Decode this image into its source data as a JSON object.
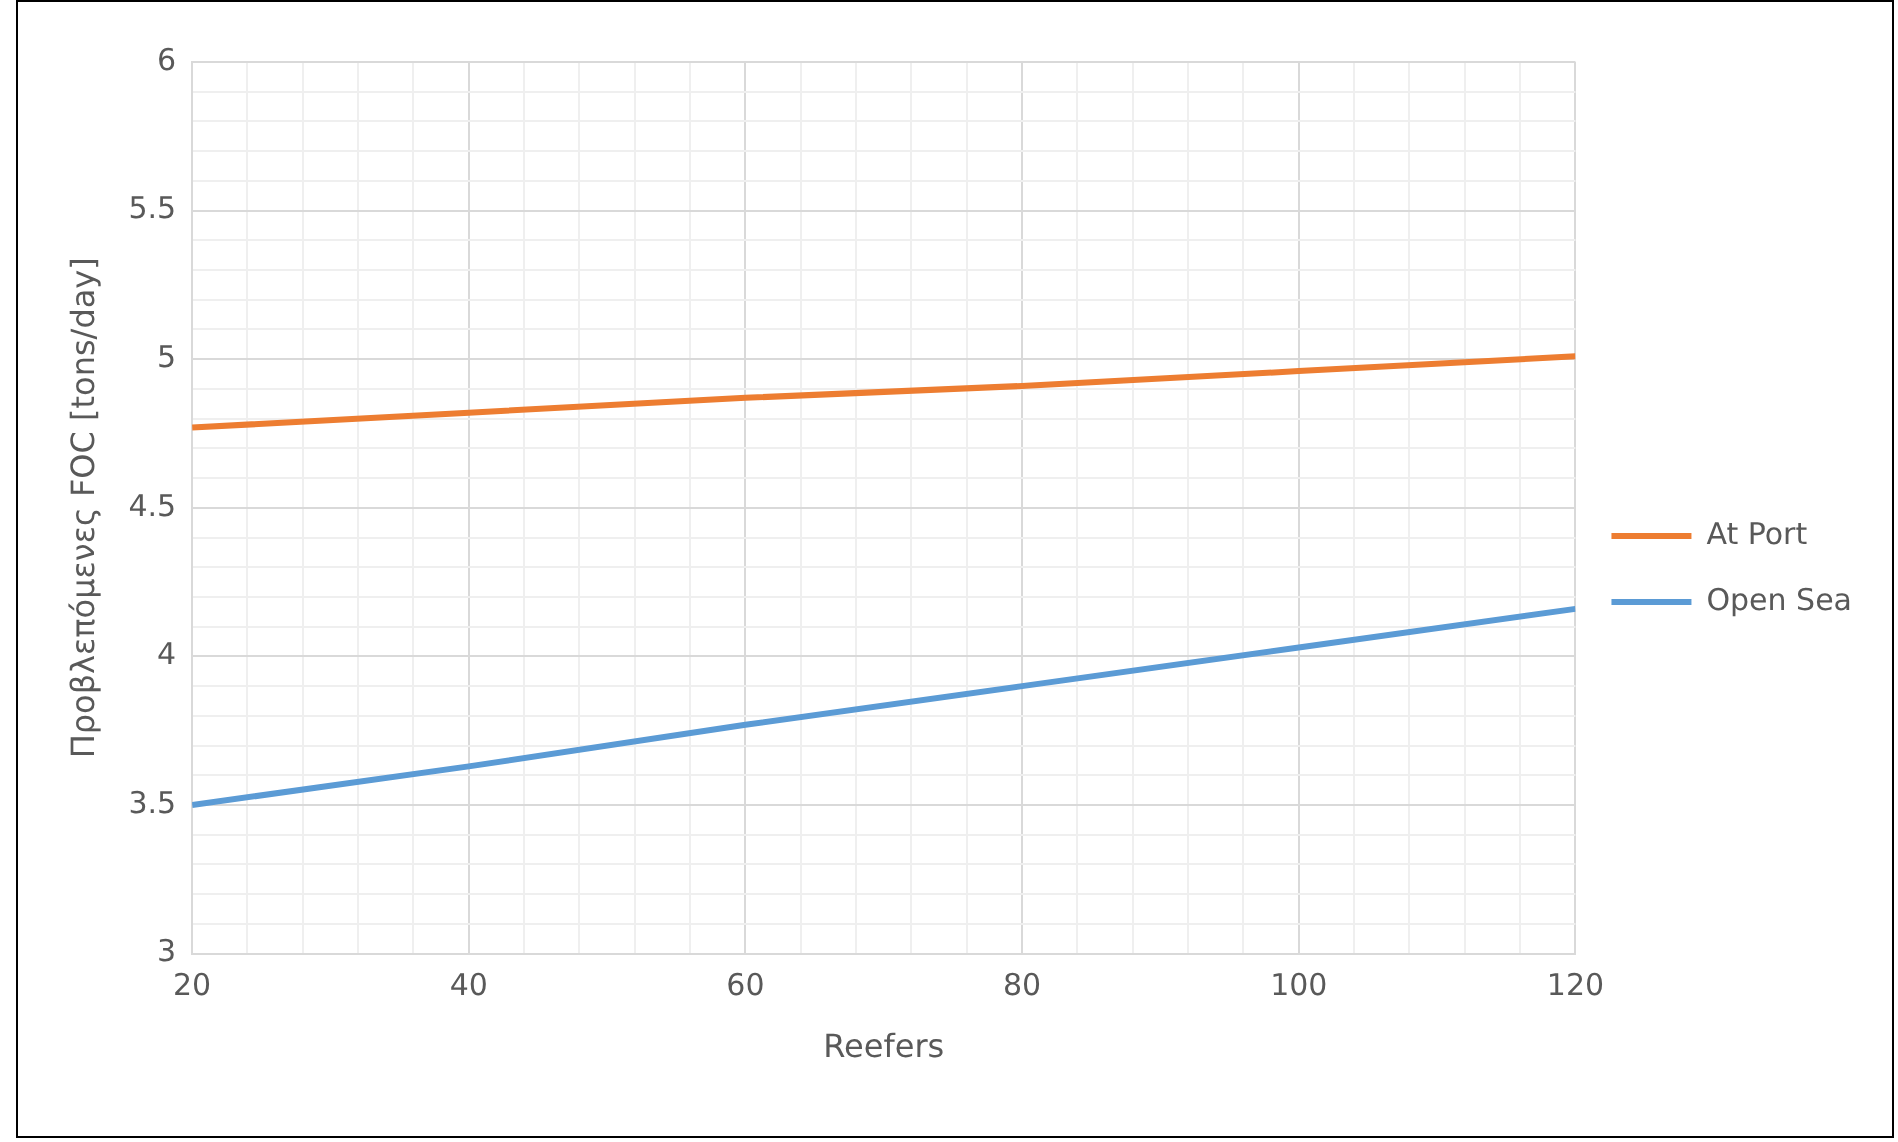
{
  "chart_data": {
    "type": "line",
    "xlabel": "Reefers",
    "ylabel": "Προβλεπόμενες FOC [tons/day]",
    "x": [
      20,
      40,
      60,
      80,
      100,
      120
    ],
    "series": [
      {
        "name": "At Port",
        "color": "#ed7d31",
        "values": [
          4.77,
          4.82,
          4.87,
          4.91,
          4.96,
          5.01
        ]
      },
      {
        "name": "Open Sea",
        "color": "#5b9bd5",
        "values": [
          3.5,
          3.63,
          3.77,
          3.9,
          4.03,
          4.16
        ]
      }
    ],
    "xlim": [
      20,
      120
    ],
    "xticks": [
      20,
      {
        "value": 24,
        "label": null
      },
      {
        "value": 28,
        "label": null
      },
      {
        "value": 32,
        "label": null
      },
      {
        "value": 36,
        "label": null
      },
      40,
      {
        "value": 44,
        "label": null
      },
      {
        "value": 48,
        "label": null
      },
      {
        "value": 52,
        "label": null
      },
      {
        "value": 56,
        "label": null
      },
      60,
      {
        "value": 64,
        "label": null
      },
      {
        "value": 68,
        "label": null
      },
      {
        "value": 72,
        "label": null
      },
      {
        "value": 76,
        "label": null
      },
      80,
      {
        "value": 84,
        "label": null
      },
      {
        "value": 88,
        "label": null
      },
      {
        "value": 92,
        "label": null
      },
      {
        "value": 96,
        "label": null
      },
      100,
      {
        "value": 104,
        "label": null
      },
      {
        "value": 108,
        "label": null
      },
      {
        "value": 112,
        "label": null
      },
      {
        "value": 116,
        "label": null
      },
      120
    ],
    "ylim": [
      3,
      6
    ],
    "yticks": [
      3,
      {
        "value": 3.1,
        "label": null
      },
      {
        "value": 3.2,
        "label": null
      },
      {
        "value": 3.3,
        "label": null
      },
      {
        "value": 3.4,
        "label": null
      },
      3.5,
      {
        "value": 3.6,
        "label": null
      },
      {
        "value": 3.7,
        "label": null
      },
      {
        "value": 3.8,
        "label": null
      },
      {
        "value": 3.9,
        "label": null
      },
      4,
      {
        "value": 4.1,
        "label": null
      },
      {
        "value": 4.2,
        "label": null
      },
      {
        "value": 4.3,
        "label": null
      },
      {
        "value": 4.4,
        "label": null
      },
      4.5,
      {
        "value": 4.6,
        "label": null
      },
      {
        "value": 4.7,
        "label": null
      },
      {
        "value": 4.8,
        "label": null
      },
      {
        "value": 4.9,
        "label": null
      },
      5,
      {
        "value": 5.1,
        "label": null
      },
      {
        "value": 5.2,
        "label": null
      },
      {
        "value": 5.3,
        "label": null
      },
      {
        "value": 5.4,
        "label": null
      },
      5.5,
      {
        "value": 5.6,
        "label": null
      },
      {
        "value": 5.7,
        "label": null
      },
      {
        "value": 5.8,
        "label": null
      },
      {
        "value": 5.9,
        "label": null
      },
      6
    ],
    "grid": true,
    "legend": "right",
    "marker": "none",
    "line_style": "solid"
  }
}
